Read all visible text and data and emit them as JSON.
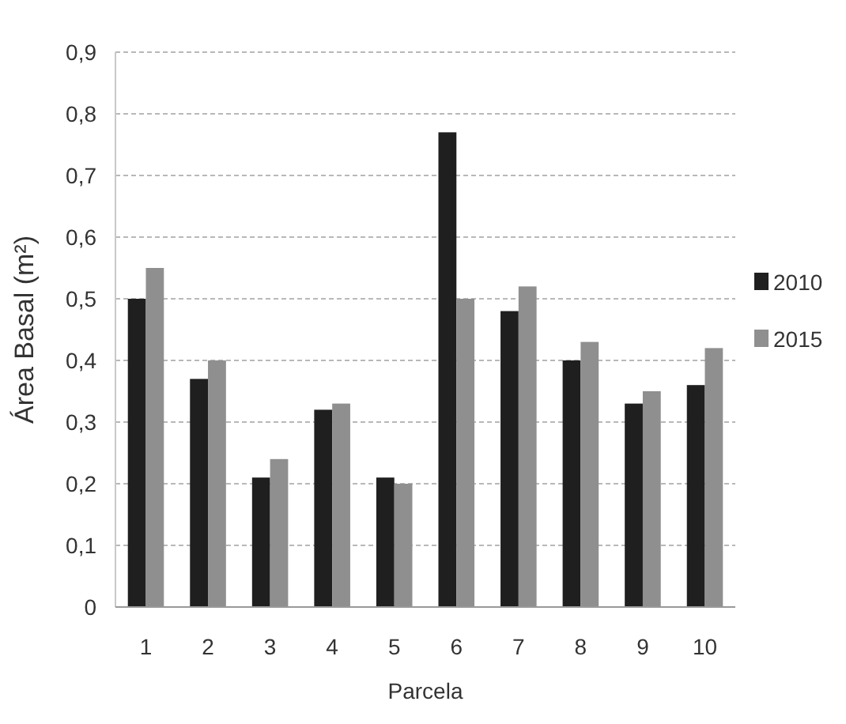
{
  "chart_data": {
    "type": "bar",
    "xlabel": "Parcela",
    "ylabel": "Área Basal (m²)",
    "categories": [
      "1",
      "2",
      "3",
      "4",
      "5",
      "6",
      "7",
      "8",
      "9",
      "10"
    ],
    "series": [
      {
        "name": "2010",
        "color": "#1f1f1f",
        "values": [
          0.5,
          0.37,
          0.21,
          0.32,
          0.21,
          0.77,
          0.48,
          0.4,
          0.33,
          0.36
        ]
      },
      {
        "name": "2015",
        "color": "#8f8f8f",
        "values": [
          0.55,
          0.4,
          0.24,
          0.33,
          0.2,
          0.5,
          0.52,
          0.43,
          0.35,
          0.42
        ]
      }
    ],
    "ylim": [
      0,
      0.9
    ],
    "yticks": [
      0,
      {
        "value": 0.1,
        "label": "0,1"
      },
      {
        "value": 0.2,
        "label": "0,2"
      },
      {
        "value": 0.3,
        "label": "0,3"
      },
      {
        "value": 0.4,
        "label": "0,4"
      },
      {
        "value": 0.5,
        "label": "0,5"
      },
      {
        "value": 0.6,
        "label": "0,6"
      },
      {
        "value": 0.7,
        "label": "0,7"
      },
      {
        "value": 0.8,
        "label": "0,8"
      },
      {
        "value": 0.9,
        "label": "0,9"
      }
    ],
    "grid": "y",
    "legend": "right"
  }
}
